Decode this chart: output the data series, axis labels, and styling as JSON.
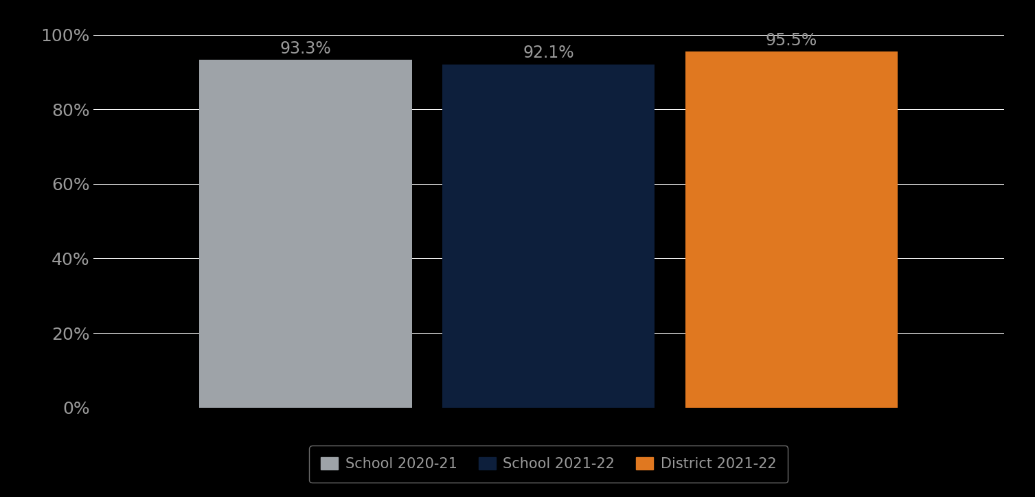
{
  "categories": [
    "School 2020-21",
    "School 2021-22",
    "District 2021-22"
  ],
  "values": [
    0.933,
    0.921,
    0.955
  ],
  "bar_colors": [
    "#9EA3A8",
    "#0D1F3C",
    "#E07820"
  ],
  "value_labels": [
    "93.3%",
    "92.1%",
    "95.5%"
  ],
  "background_color": "#000000",
  "text_color": "#9A9A9A",
  "label_color": "#9A9A9A",
  "ylim": [
    0,
    1.0
  ],
  "yticks": [
    0.0,
    0.2,
    0.4,
    0.6,
    0.8,
    1.0
  ],
  "ytick_labels": [
    "0%",
    "20%",
    "40%",
    "60%",
    "80%",
    "100%"
  ],
  "grid_color": "#FFFFFF",
  "legend_edge_color": "#888888",
  "bar_width": 0.28,
  "bar_positions": [
    0.28,
    0.6,
    0.92
  ],
  "xlim": [
    0.0,
    1.2
  ],
  "value_fontsize": 17,
  "tick_fontsize": 18,
  "legend_fontsize": 15
}
